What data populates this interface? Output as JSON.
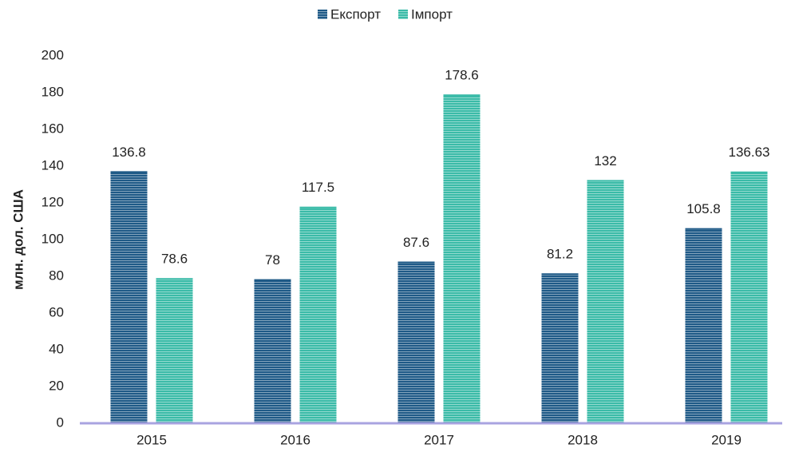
{
  "chart_data": {
    "type": "bar",
    "y_axis_label": "млн. дол. США",
    "categories": [
      "2015",
      "2016",
      "2017",
      "2018",
      "2019"
    ],
    "series": [
      {
        "name": "Експорт",
        "color": "#1f5a87",
        "values": [
          136.8,
          78,
          87.6,
          81.2,
          105.8
        ]
      },
      {
        "name": "Імпорт",
        "color": "#3bbba8",
        "values": [
          78.6,
          117.5,
          178.6,
          132,
          136.63
        ]
      }
    ],
    "ylim": [
      0,
      200
    ],
    "yticks": [
      0,
      20,
      40,
      60,
      80,
      100,
      120,
      140,
      160,
      180,
      200
    ],
    "grid": false,
    "legend": "top",
    "axis_color": "#a9a3e0"
  }
}
